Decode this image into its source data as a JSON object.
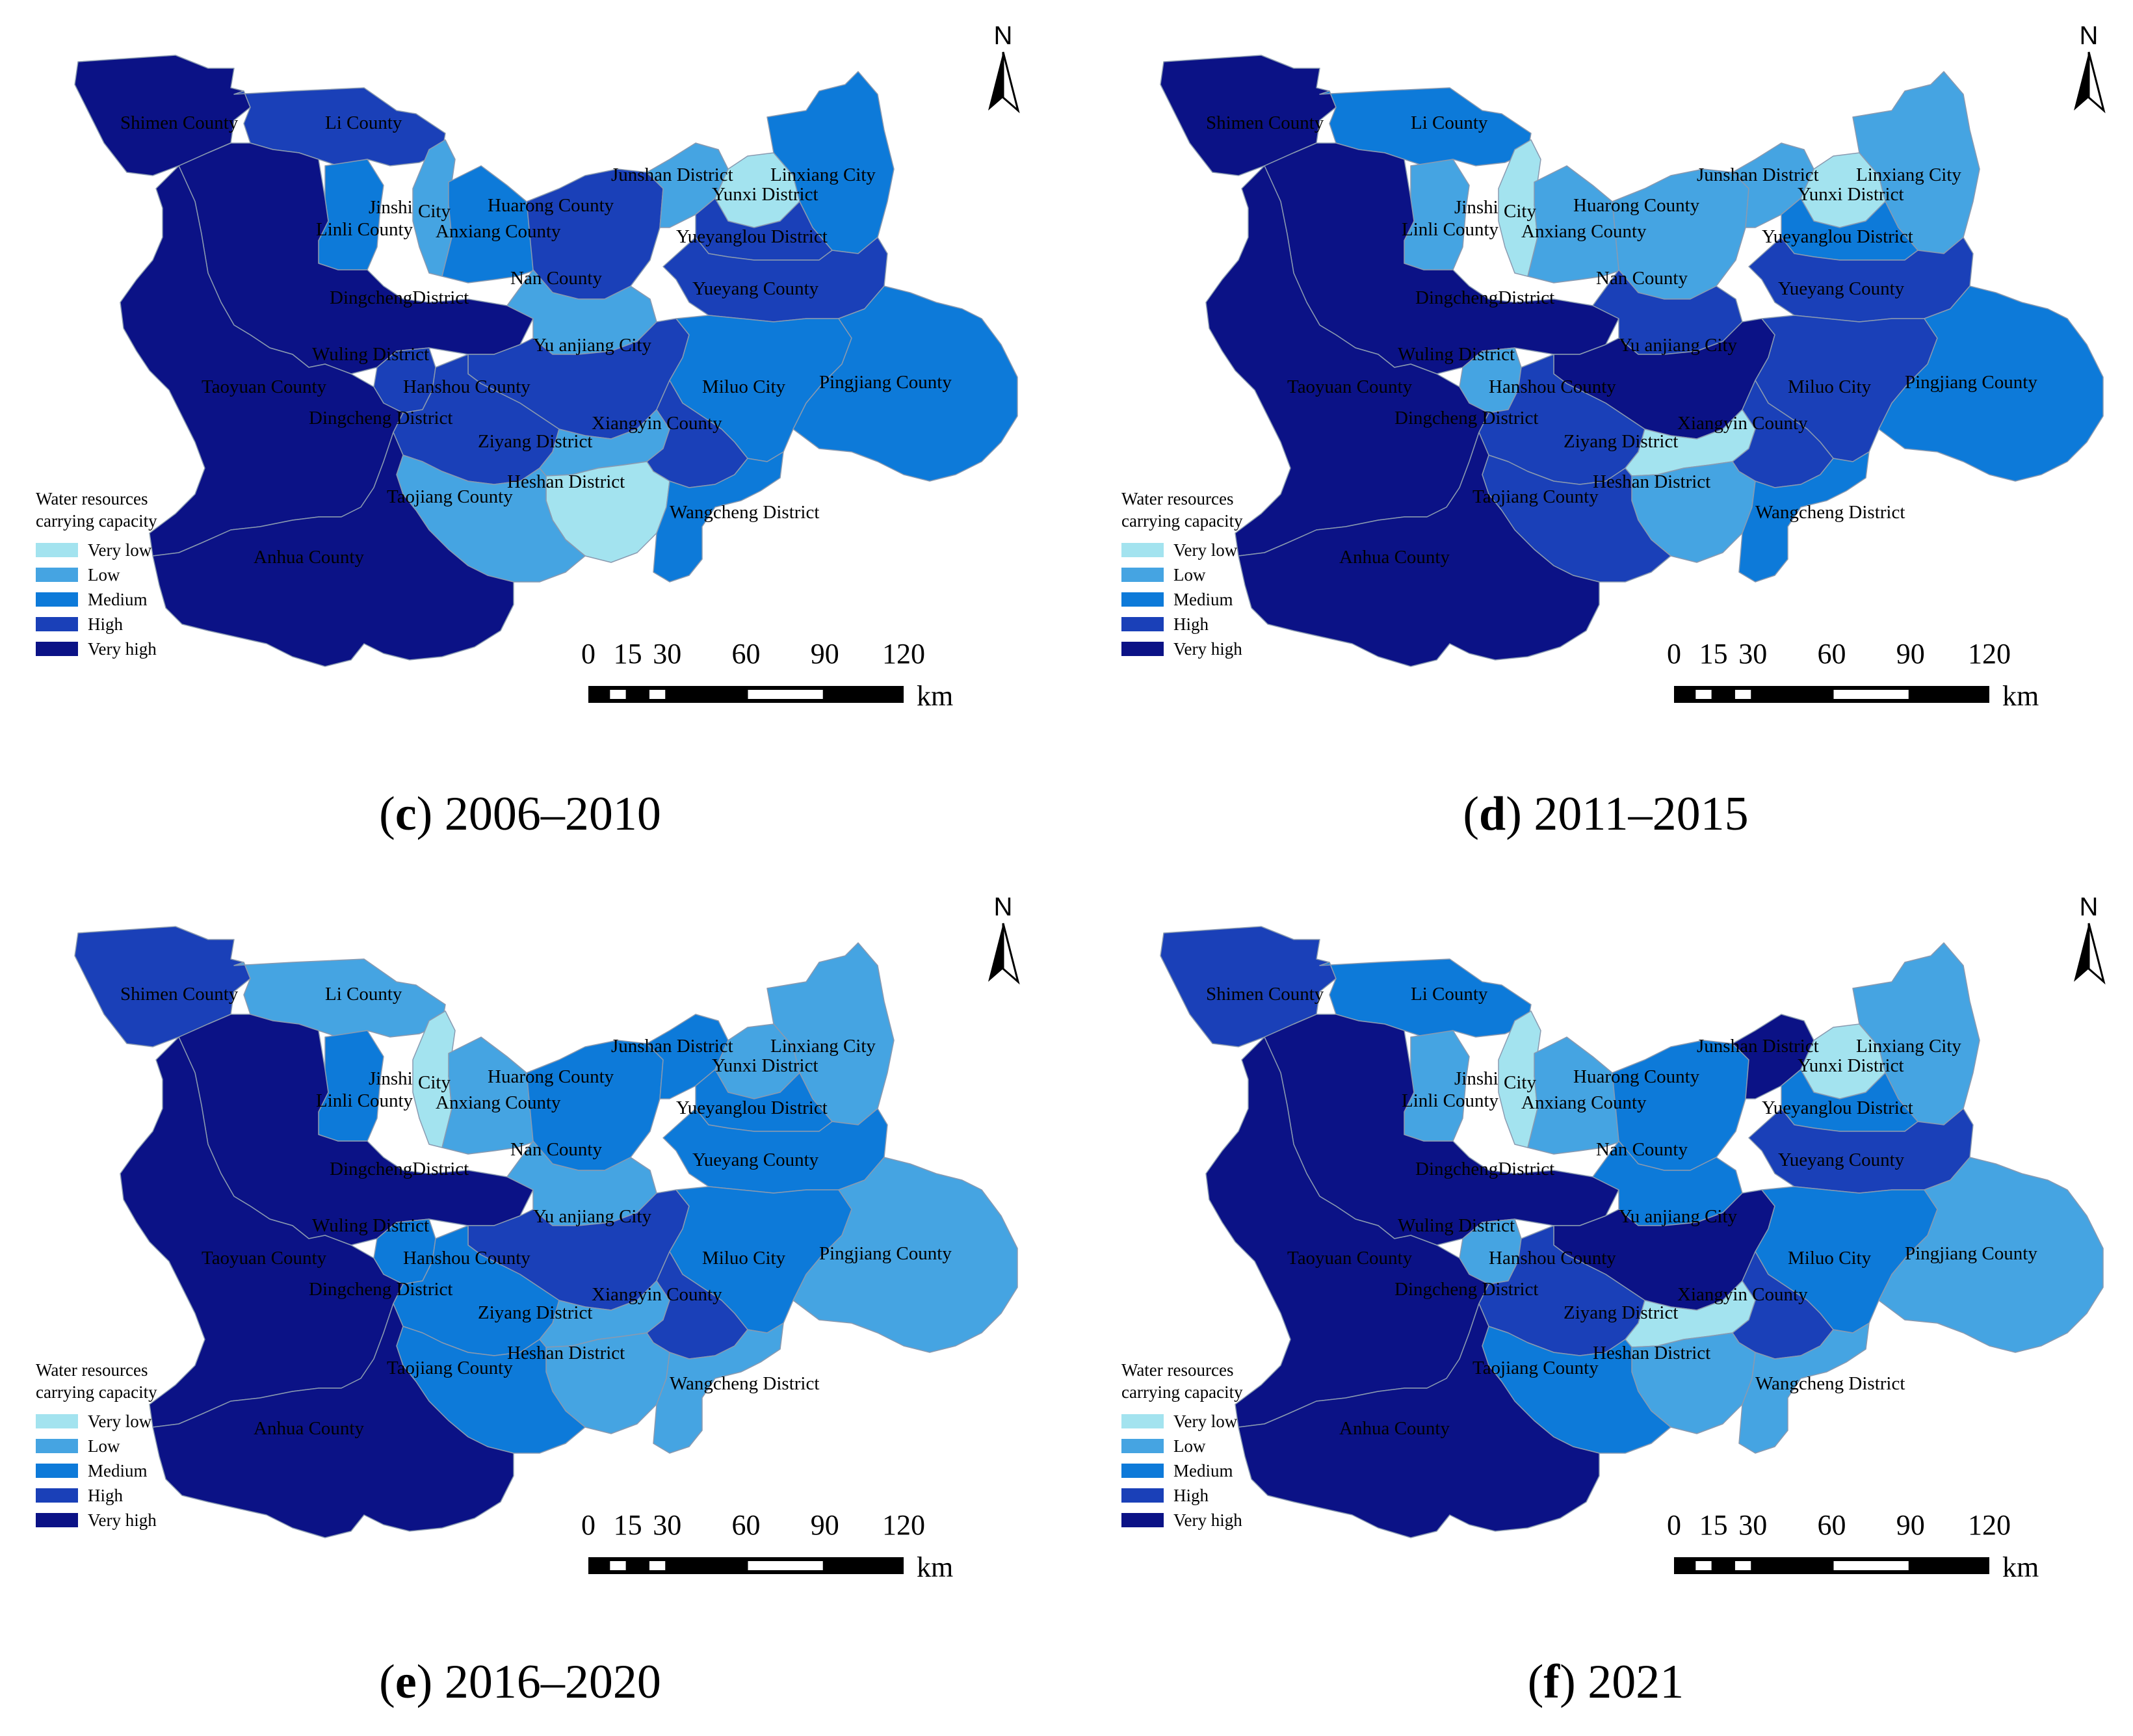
{
  "colors": {
    "very_low": "#a3e3ef",
    "low": "#45a4e2",
    "medium": "#0d7ad9",
    "high": "#1a40b8",
    "very_high": "#0b1286",
    "boundary": "#8a9ab0"
  },
  "legend": {
    "title_line1": "Water resources",
    "title_line2": "carrying capacity",
    "items": [
      "Very low",
      "Low",
      "Medium",
      "High",
      "Very high"
    ]
  },
  "scale_bar": {
    "ticks": [
      "0",
      "15",
      "30",
      "60",
      "90",
      "120"
    ],
    "unit": "km"
  },
  "north_arrow": {
    "letter": "N",
    "icon": "north-arrow-icon"
  },
  "district_labels": {
    "shimen": "Shimen County",
    "li": "Li County",
    "jinshi": "Jinshi",
    "jinshi_city": "City",
    "linli": "Linli County",
    "anxiang": "Anxiang County",
    "huarong": "Huarong County",
    "junshan": "Junshan District",
    "yunxi": "Yunxi District",
    "linxiang": "Linxiang City",
    "yueyanglou": "Yueyanglou District",
    "dingcheng1": "DingchengDistrict",
    "nan": "Nan County",
    "yueyang": "Yueyang County",
    "wuling": "Wuling District",
    "yuanjiang": "Yu anjiang City",
    "taoyuan": "Taoyuan County",
    "hanshou": "Hanshou County",
    "miluo": "Miluo City",
    "pingjiang": "Pingjiang County",
    "dingcheng2": "Dingcheng District",
    "ziyang": "Ziyang District",
    "xiangyin": "Xiangyin County",
    "heshan": "Heshan District",
    "taojiang": "Taojiang County",
    "wangcheng": "Wangcheng District",
    "anhua": "Anhua County"
  },
  "panels": [
    {
      "id": "c",
      "caption_letter": "c",
      "caption_period": "2006–2010",
      "classes": {
        "shimen": "very_high",
        "li": "high",
        "linli": "medium",
        "jinshi": "low",
        "anxiang": "medium",
        "huarong": "high",
        "junshan": "low",
        "yunxi": "very_low",
        "linxiang": "medium",
        "yueyanglou": "high",
        "dingcheng": "very_high",
        "nan": "low",
        "yueyang": "high",
        "wuling": "high",
        "yuanjiang": "high",
        "taoyuan": "very_high",
        "hanshou": "high",
        "miluo": "medium",
        "pingjiang": "medium",
        "ziyang": "low",
        "xiangyin": "high",
        "heshan": "very_low",
        "taojiang": "low",
        "wangcheng": "medium",
        "anhua": "very_high"
      }
    },
    {
      "id": "d",
      "caption_letter": "d",
      "caption_period": "2011–2015",
      "classes": {
        "shimen": "very_high",
        "li": "medium",
        "linli": "low",
        "jinshi": "very_low",
        "anxiang": "low",
        "huarong": "low",
        "junshan": "low",
        "yunxi": "very_low",
        "linxiang": "low",
        "yueyanglou": "medium",
        "dingcheng": "very_high",
        "nan": "high",
        "yueyang": "high",
        "wuling": "low",
        "yuanjiang": "very_high",
        "taoyuan": "very_high",
        "hanshou": "high",
        "miluo": "high",
        "pingjiang": "medium",
        "ziyang": "very_low",
        "xiangyin": "high",
        "heshan": "low",
        "taojiang": "high",
        "wangcheng": "medium",
        "anhua": "very_high"
      }
    },
    {
      "id": "e",
      "caption_letter": "e",
      "caption_period": "2016–2020",
      "classes": {
        "shimen": "high",
        "li": "low",
        "linli": "medium",
        "jinshi": "very_low",
        "anxiang": "low",
        "huarong": "medium",
        "junshan": "medium",
        "yunxi": "low",
        "linxiang": "low",
        "yueyanglou": "medium",
        "dingcheng": "very_high",
        "nan": "low",
        "yueyang": "medium",
        "wuling": "medium",
        "yuanjiang": "high",
        "taoyuan": "very_high",
        "hanshou": "medium",
        "miluo": "medium",
        "pingjiang": "low",
        "ziyang": "low",
        "xiangyin": "high",
        "heshan": "low",
        "taojiang": "medium",
        "wangcheng": "low",
        "anhua": "very_high"
      }
    },
    {
      "id": "f",
      "caption_letter": "f",
      "caption_period": "2021",
      "classes": {
        "shimen": "high",
        "li": "medium",
        "linli": "low",
        "jinshi": "very_low",
        "anxiang": "low",
        "huarong": "medium",
        "junshan": "very_high",
        "yunxi": "very_low",
        "linxiang": "low",
        "yueyanglou": "medium",
        "dingcheng": "very_high",
        "nan": "medium",
        "yueyang": "high",
        "wuling": "low",
        "yuanjiang": "very_high",
        "taoyuan": "very_high",
        "hanshou": "high",
        "miluo": "medium",
        "pingjiang": "low",
        "ziyang": "very_low",
        "xiangyin": "high",
        "heshan": "low",
        "taojiang": "medium",
        "wangcheng": "low",
        "anhua": "very_high"
      }
    }
  ]
}
